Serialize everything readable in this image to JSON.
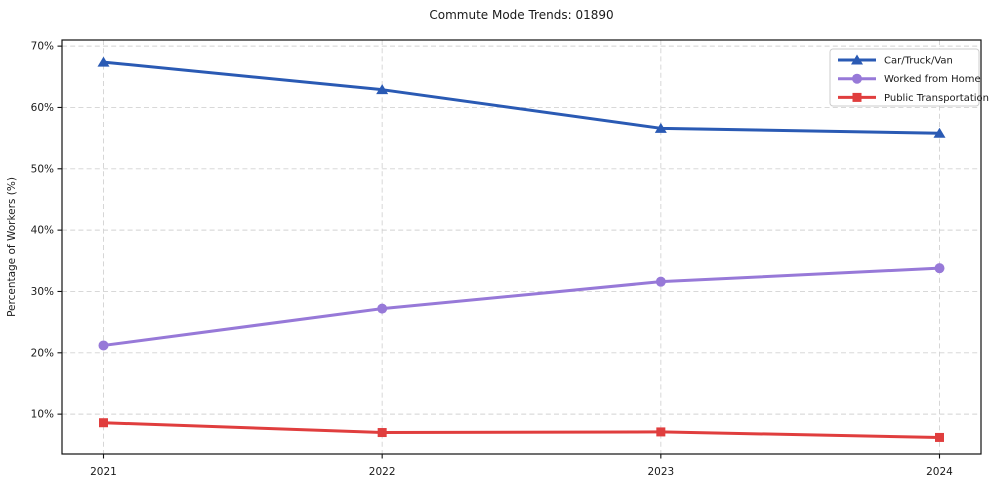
{
  "chart_data": {
    "type": "line",
    "title": "Commute Mode Trends: 01890",
    "xlabel": "",
    "ylabel": "Percentage of Workers (%)",
    "categories": [
      "2021",
      "2022",
      "2023",
      "2024"
    ],
    "series": [
      {
        "name": "Car/Truck/Van",
        "color": "#2a5ab4",
        "marker": "triangle",
        "values": [
          67.4,
          62.9,
          56.6,
          55.8
        ]
      },
      {
        "name": "Worked from Home",
        "color": "#9779d8",
        "marker": "circle",
        "values": [
          21.2,
          27.2,
          31.6,
          33.8
        ]
      },
      {
        "name": "Public Transportation",
        "color": "#e03e3e",
        "marker": "square",
        "values": [
          8.6,
          7.0,
          7.1,
          6.2
        ]
      }
    ],
    "ylim": [
      3.5,
      71
    ],
    "yticks": [
      10,
      20,
      30,
      40,
      50,
      60,
      70
    ],
    "ytick_suffix": "%",
    "grid": true,
    "grid_color": "#d2d2d2",
    "spine_color": "#111111",
    "legend_position": "upper right",
    "legend_border_color": "#cccccc",
    "background_color": "#ffffff"
  }
}
